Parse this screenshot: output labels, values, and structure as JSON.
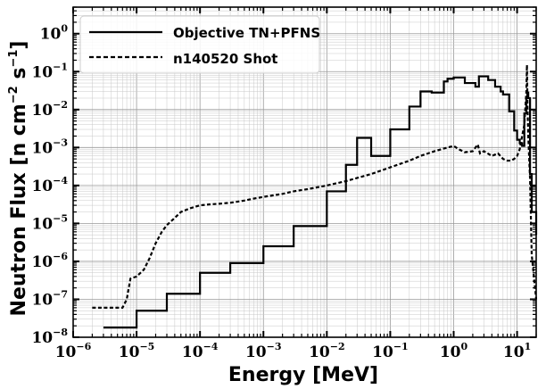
{
  "chart_data": {
    "type": "line",
    "xlabel": "Energy [MeV]",
    "ylabel_main": "Neutron Flux [n cm",
    "ylabel_exp1": "−2",
    "ylabel_mid": " s",
    "ylabel_exp2": "−1",
    "ylabel_end": "]",
    "xscale": "log",
    "yscale": "log",
    "xlim": [
      1e-06,
      20
    ],
    "ylim": [
      1e-08,
      5
    ],
    "grid": true,
    "legend_position": "top-left",
    "x_ticks": [
      {
        "value": 1e-06,
        "base": "10",
        "exp": "−6"
      },
      {
        "value": 1e-05,
        "base": "10",
        "exp": "−5"
      },
      {
        "value": 0.0001,
        "base": "10",
        "exp": "−4"
      },
      {
        "value": 0.001,
        "base": "10",
        "exp": "−3"
      },
      {
        "value": 0.01,
        "base": "10",
        "exp": "−2"
      },
      {
        "value": 0.1,
        "base": "10",
        "exp": "−1"
      },
      {
        "value": 1,
        "base": "10",
        "exp": "0"
      },
      {
        "value": 10,
        "base": "10",
        "exp": "1"
      }
    ],
    "y_ticks": [
      {
        "value": 1e-08,
        "base": "10",
        "exp": "−8"
      },
      {
        "value": 1e-07,
        "base": "10",
        "exp": "−7"
      },
      {
        "value": 1e-06,
        "base": "10",
        "exp": "−6"
      },
      {
        "value": 1e-05,
        "base": "10",
        "exp": "−5"
      },
      {
        "value": 0.0001,
        "base": "10",
        "exp": "−4"
      },
      {
        "value": 0.001,
        "base": "10",
        "exp": "−3"
      },
      {
        "value": 0.01,
        "base": "10",
        "exp": "−2"
      },
      {
        "value": 0.1,
        "base": "10",
        "exp": "−1"
      },
      {
        "value": 1,
        "base": "10",
        "exp": "0"
      }
    ],
    "series": [
      {
        "name": "Objective TN+PFNS",
        "style": "solid",
        "color": "#000000",
        "step": true,
        "x": [
          3e-06,
          1e-05,
          3e-05,
          0.0001,
          0.0003,
          0.001,
          0.003,
          0.01,
          0.02,
          0.03,
          0.05,
          0.1,
          0.2,
          0.3,
          0.45,
          0.7,
          0.8,
          1.0,
          1.5,
          2.2,
          2.5,
          3.5,
          4.5,
          5.5,
          6.0,
          7.5,
          9.0,
          10.0,
          11.0,
          12.0,
          13.0,
          14.0,
          14.5,
          15.0,
          16.0,
          17.0,
          20.0
        ],
        "y": [
          1.8e-08,
          5e-08,
          1.4e-07,
          5e-07,
          9e-07,
          2.5e-06,
          8.5e-06,
          7e-05,
          0.00035,
          0.0018,
          0.0006,
          0.003,
          0.012,
          0.03,
          0.028,
          0.055,
          0.065,
          0.07,
          0.05,
          0.04,
          0.075,
          0.06,
          0.04,
          0.03,
          0.025,
          0.009,
          0.0028,
          0.0016,
          0.0013,
          0.0011,
          0.008,
          0.02,
          0.028,
          0.02,
          0.0002,
          2e-05,
          5e-06
        ]
      },
      {
        "name": "n140520 Shot",
        "style": "dashed",
        "color": "#000000",
        "step": false,
        "x": [
          2e-06,
          6e-06,
          7e-06,
          8e-06,
          1e-05,
          1.3e-05,
          1.6e-05,
          2e-05,
          2.5e-05,
          3e-05,
          4e-05,
          5e-05,
          7e-05,
          0.0001,
          0.00015,
          0.0002,
          0.0003,
          0.0005,
          0.0007,
          0.001,
          0.002,
          0.003,
          0.005,
          0.01,
          0.02,
          0.05,
          0.1,
          0.2,
          0.3,
          0.5,
          0.8,
          1.0,
          1.2,
          1.5,
          2.0,
          2.4,
          2.6,
          3.0,
          4.0,
          5.0,
          6.0,
          7.0,
          8.0,
          9.0,
          10.0,
          11.0,
          12.0,
          13.0,
          14.0,
          14.3,
          14.6,
          15.0,
          16.0,
          17.0,
          20.0
        ],
        "y": [
          6e-08,
          6e-08,
          1e-07,
          3.5e-07,
          4e-07,
          6e-07,
          1.2e-06,
          3e-06,
          6e-06,
          9e-06,
          1.4e-05,
          2e-05,
          2.5e-05,
          3e-05,
          3.2e-05,
          3.3e-05,
          3.5e-05,
          4e-05,
          4.5e-05,
          5e-05,
          6e-05,
          7e-05,
          8e-05,
          0.0001,
          0.00013,
          0.0002,
          0.0003,
          0.00045,
          0.0006,
          0.0008,
          0.001,
          0.0011,
          0.0009,
          0.00075,
          0.0008,
          0.0012,
          0.0007,
          0.0008,
          0.0006,
          0.0007,
          0.0005,
          0.00045,
          0.00045,
          0.0005,
          0.0006,
          0.0009,
          0.002,
          0.004,
          0.03,
          0.15,
          0.012,
          0.002,
          0.00015,
          1.5e-06,
          1e-07
        ]
      }
    ]
  }
}
